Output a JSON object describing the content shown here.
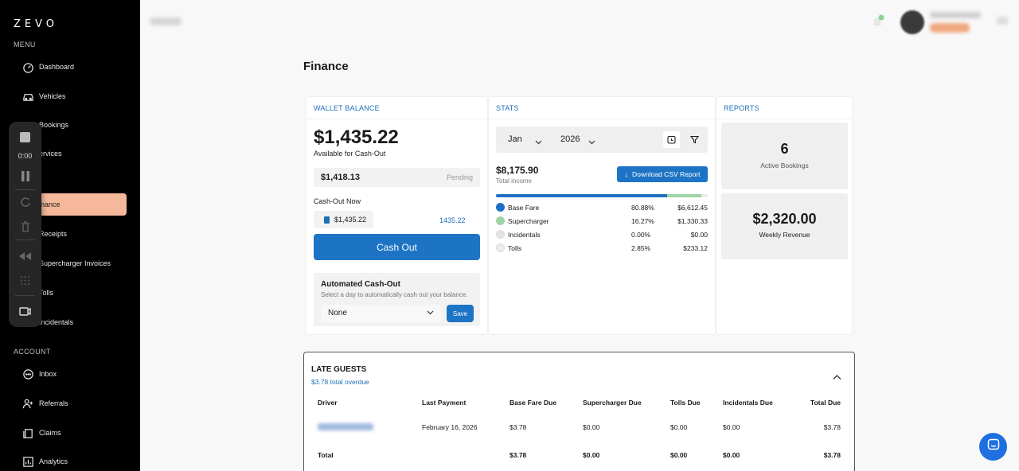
{
  "app": {
    "logo": "ZEVO"
  },
  "sidebar": {
    "menu_label": "MENU",
    "account_label": "ACCOUNT",
    "items": [
      {
        "label": "Dashboard",
        "icon": "dashboard-icon"
      },
      {
        "label": "Vehicles",
        "icon": "car-icon"
      },
      {
        "label": "Bookings",
        "icon": "calendar-icon"
      },
      {
        "label": "ervices",
        "icon": "wrench-icon"
      },
      {
        "label": "inance",
        "icon": "finance-icon",
        "active": true
      },
      {
        "label": "Receipts",
        "icon": "receipt-icon"
      },
      {
        "label": "Supercharger Invoices",
        "icon": "bolt-icon"
      },
      {
        "label": "Tolls",
        "icon": "toll-icon"
      },
      {
        "label": "Incidentals",
        "icon": "alert-icon"
      }
    ],
    "account_items": [
      {
        "label": "Inbox",
        "icon": "chat-icon"
      },
      {
        "label": "Referrals",
        "icon": "user-plus-icon"
      },
      {
        "label": "Claims",
        "icon": "claims-icon"
      },
      {
        "label": "Analytics",
        "icon": "chart-icon"
      }
    ]
  },
  "recorder": {
    "time": "0:00"
  },
  "page": {
    "title": "Finance"
  },
  "wallet": {
    "header": "WALLET BALANCE",
    "balance": "$1,435.22",
    "balance_sub": "Available for Cash-Out",
    "pending_amount": "$1,418.13",
    "pending_status": "Pending",
    "cashout_now_label": "Cash-Out Now",
    "cashout_input": "$1,435.22",
    "cashout_max": "1435.22",
    "cashout_button": "Cash Out",
    "auto_title": "Automated Cash-Out",
    "auto_sub": "Select a day to automatically cash out your balance.",
    "auto_selected": "None",
    "save_button": "Save"
  },
  "stats": {
    "header": "STATS",
    "month": "Jan",
    "year": "2026",
    "total_income": "$8,175.90",
    "total_income_label": "Total income",
    "download_button": "Download CSV Report",
    "breakdown": [
      {
        "name": "Base Fare",
        "percent": "80.88%",
        "value": "$6,612.45",
        "share": 80.88,
        "color": "#1e6fc4"
      },
      {
        "name": "Supercharger",
        "percent": "16.27%",
        "value": "$1,330.33",
        "share": 16.27,
        "color": "#9fd4a6"
      },
      {
        "name": "Incidentals",
        "percent": "0.00%",
        "value": "$0.00",
        "share": 0.0,
        "color": "#e4e4e4"
      },
      {
        "name": "Tolls",
        "percent": "2.85%",
        "value": "$233.12",
        "share": 2.85,
        "color": "#ececec"
      }
    ]
  },
  "reports": {
    "header": "REPORTS",
    "active_bookings": "6",
    "active_bookings_label": "Active Bookings",
    "weekly_revenue": "$2,320.00",
    "weekly_revenue_label": "Weekly Revenue"
  },
  "late_guests": {
    "title": "LATE GUESTS",
    "subtitle": "$3.78 total overdue",
    "columns": [
      "Driver",
      "Last Payment",
      "Base Fare Due",
      "Supercharger Due",
      "Tolls Due",
      "Incidentals Due",
      "Total Due"
    ],
    "row": {
      "last_payment": "February 16, 2026",
      "base_fare": "$3.78",
      "supercharger": "$0.00",
      "tolls": "$0.00",
      "incidentals": "$0.00",
      "total": "$3.78"
    },
    "total_row": {
      "label": "Total",
      "base_fare": "$3.78",
      "supercharger": "$0.00",
      "tolls": "$0.00",
      "incidentals": "$0.00",
      "total": "$3.78"
    }
  }
}
